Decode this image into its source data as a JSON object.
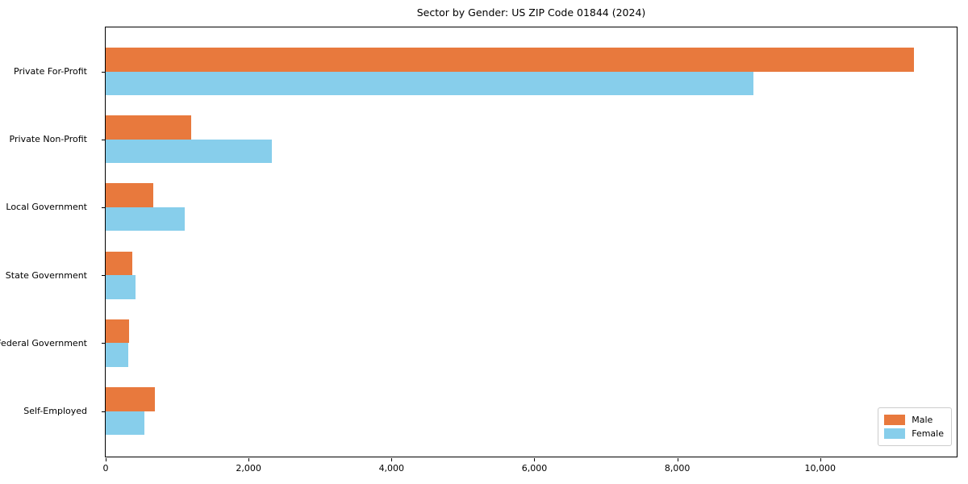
{
  "title": "Sector by Gender: US ZIP Code 01844 (2024)",
  "chart_data": {
    "type": "bar",
    "orientation": "horizontal",
    "title": "Sector by Gender: US ZIP Code 01844 (2024)",
    "categories": [
      "Private For-Profit",
      "Private Non-Profit",
      "Local Government",
      "State Government",
      "Federal Government",
      "Self-Employed"
    ],
    "series": [
      {
        "name": "Male",
        "color": "#e8793d",
        "values": [
          11310,
          1195,
          665,
          370,
          330,
          685
        ]
      },
      {
        "name": "Female",
        "color": "#87ceeb",
        "values": [
          9070,
          2320,
          1105,
          420,
          315,
          540
        ]
      }
    ],
    "xlabel": "",
    "ylabel": "",
    "xlim": [
      0,
      11910
    ],
    "x_ticks": [
      0,
      2000,
      4000,
      6000,
      8000,
      10000
    ],
    "x_tick_labels": [
      "0",
      "2,000",
      "4,000",
      "6,000",
      "8,000",
      "10,000"
    ],
    "grid": false,
    "legend_position": "lower right",
    "legend_items": [
      {
        "label": "Male",
        "color": "#e8793d"
      },
      {
        "label": "Female",
        "color": "#87ceeb"
      }
    ]
  }
}
